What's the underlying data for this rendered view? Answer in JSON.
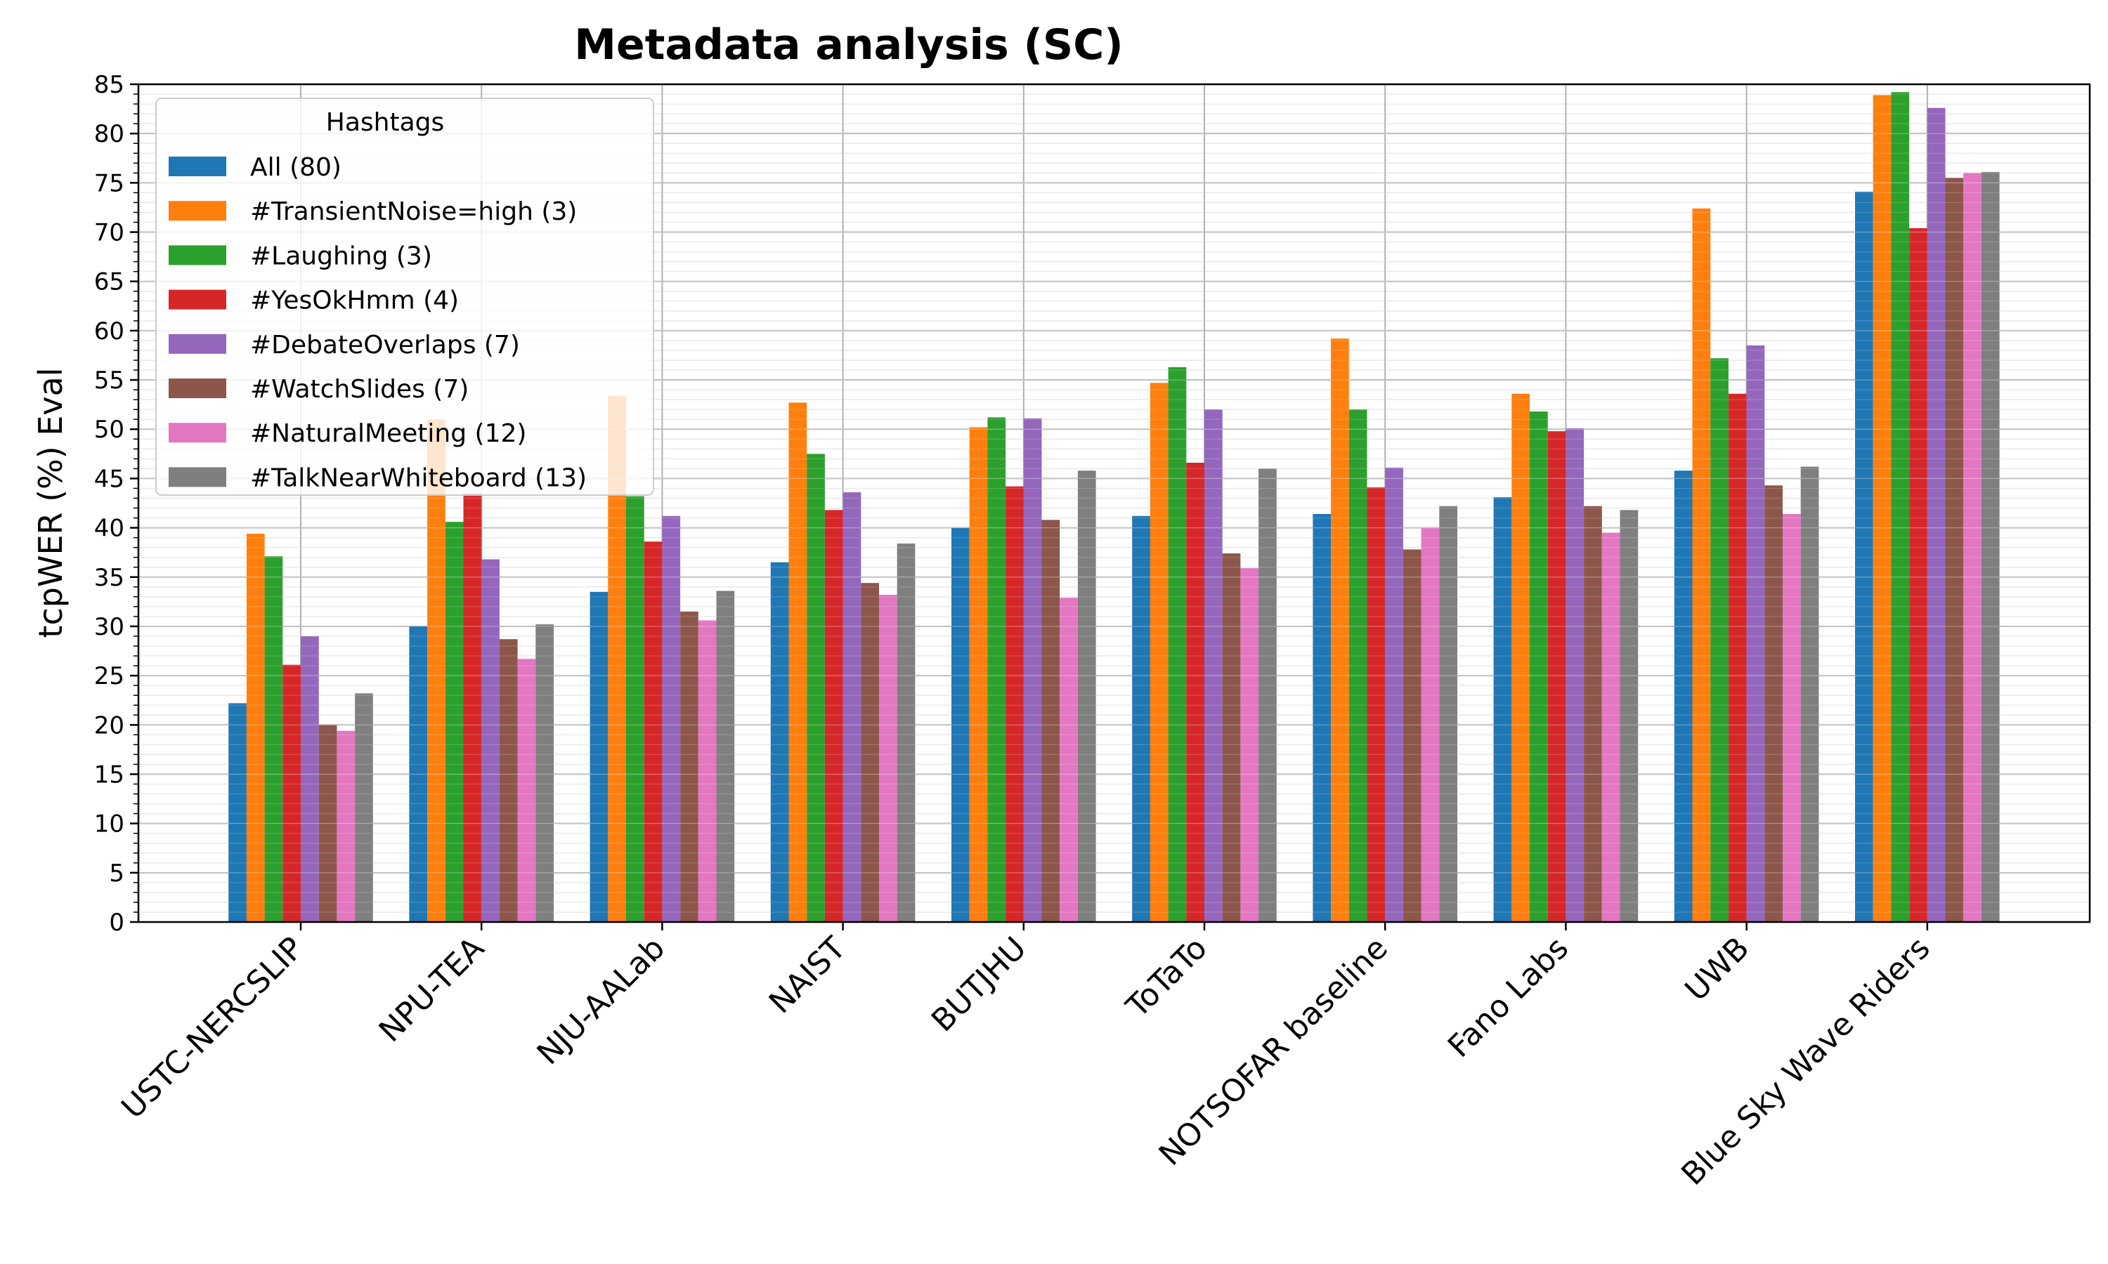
{
  "chart_data": {
    "type": "bar",
    "title": "Metadata analysis (SC)",
    "xlabel": "",
    "ylabel": "tcpWER (%) Eval",
    "ylim": [
      0,
      85
    ],
    "yticks": [
      0,
      5,
      10,
      15,
      20,
      25,
      30,
      35,
      40,
      45,
      50,
      55,
      60,
      65,
      70,
      75,
      80,
      85
    ],
    "grid": true,
    "legend_title": "Hashtags",
    "legend_position": "top-left",
    "categories": [
      "USTC-NERCSLIP",
      "NPU-TEA",
      "NJU-AALab",
      "NAIST",
      "BUTJHU",
      "ToTaTo",
      "NOTSOFAR baseline",
      "Fano Labs",
      "UWB",
      "Blue Sky Wave Riders"
    ],
    "series": [
      {
        "name": "All (80)",
        "color": "#1f77b4",
        "values": [
          22.2,
          30.0,
          33.5,
          36.5,
          40.0,
          41.2,
          41.4,
          43.1,
          45.8,
          74.1
        ]
      },
      {
        "name": "#TransientNoise=high (3)",
        "color": "#ff7f0e",
        "values": [
          39.4,
          51.0,
          53.4,
          52.7,
          50.2,
          54.7,
          59.2,
          53.6,
          72.4,
          83.9
        ]
      },
      {
        "name": "#Laughing (3)",
        "color": "#2ca02c",
        "values": [
          37.1,
          40.6,
          43.2,
          47.5,
          51.2,
          56.3,
          52.0,
          51.8,
          57.2,
          84.2
        ]
      },
      {
        "name": "#YesOkHmm (4)",
        "color": "#d62728",
        "values": [
          26.1,
          43.5,
          38.6,
          41.8,
          44.2,
          46.6,
          44.1,
          49.8,
          53.6,
          70.4
        ]
      },
      {
        "name": "#DebateOverlaps (7)",
        "color": "#9467bd",
        "values": [
          29.0,
          36.8,
          41.2,
          43.6,
          51.1,
          52.0,
          46.1,
          50.1,
          58.5,
          82.6
        ]
      },
      {
        "name": "#WatchSlides (7)",
        "color": "#8c564b",
        "values": [
          20.0,
          28.7,
          31.5,
          34.4,
          40.8,
          37.4,
          37.8,
          42.2,
          44.3,
          75.5
        ]
      },
      {
        "name": "#NaturalMeeting (12)",
        "color": "#e377c2",
        "values": [
          19.4,
          26.7,
          30.6,
          33.2,
          32.9,
          35.9,
          40.0,
          39.5,
          41.4,
          76.0
        ]
      },
      {
        "name": "#TalkNearWhiteboard (13)",
        "color": "#7f7f7f",
        "values": [
          23.2,
          30.2,
          33.6,
          38.4,
          45.8,
          46.0,
          42.2,
          41.8,
          46.2,
          76.1
        ]
      }
    ]
  }
}
